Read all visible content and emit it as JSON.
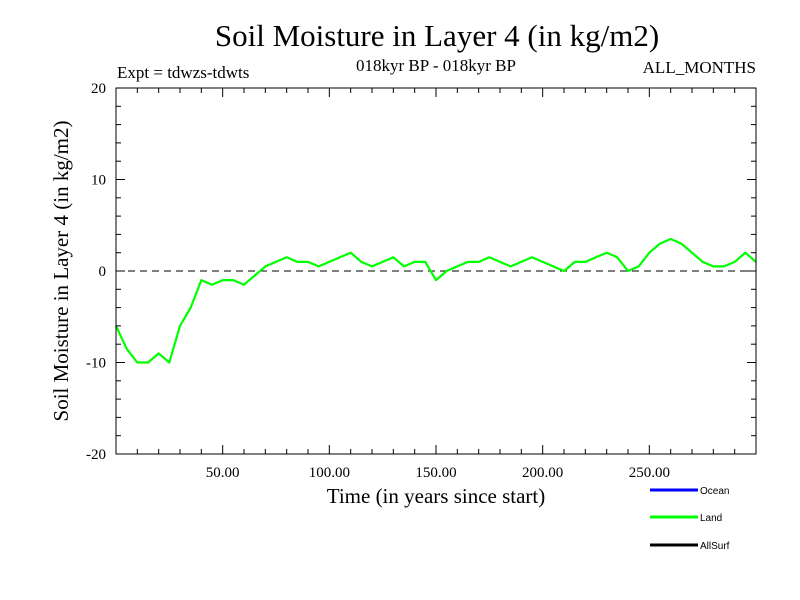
{
  "chart_data": {
    "type": "line",
    "title": "Soil Moisture in Layer 4 (in kg/m2)",
    "subtitle_left": "Expt = tdwzs-tdwts",
    "subtitle_center": "018kyr BP - 018kyr BP",
    "subtitle_right": "ALL_MONTHS",
    "xlabel": "Time (in years since start)",
    "ylabel": "Soil Moisture in Layer 4 (in kg/m2)",
    "xlim": [
      0,
      300
    ],
    "ylim": [
      -20,
      20
    ],
    "x_ticks": [
      50,
      100,
      150,
      200,
      250
    ],
    "x_tick_labels": [
      "50.00",
      "100.00",
      "150.00",
      "200.00",
      "250.00"
    ],
    "y_ticks": [
      -20,
      -10,
      0,
      10,
      20
    ],
    "y_tick_labels": [
      "-20",
      "-10",
      "0",
      "10",
      "20"
    ],
    "zero_line": 0,
    "legend": [
      {
        "name": "Ocean",
        "color": "#0000ff"
      },
      {
        "name": "Land",
        "color": "#00ff00"
      },
      {
        "name": "AllSurf",
        "color": "#000000"
      }
    ],
    "series": [
      {
        "name": "Land",
        "color": "#00ff00",
        "x": [
          0,
          5,
          10,
          15,
          20,
          25,
          30,
          35,
          40,
          45,
          50,
          55,
          60,
          65,
          70,
          75,
          80,
          85,
          90,
          95,
          100,
          105,
          110,
          115,
          120,
          125,
          130,
          135,
          140,
          145,
          150,
          155,
          160,
          165,
          170,
          175,
          180,
          185,
          190,
          195,
          200,
          205,
          210,
          215,
          220,
          225,
          230,
          235,
          240,
          245,
          250,
          255,
          260,
          265,
          270,
          275,
          280,
          285,
          290,
          295,
          300
        ],
        "values": [
          -6,
          -8.5,
          -10,
          -10,
          -9,
          -10,
          -6,
          -4,
          -1,
          -1.5,
          -1,
          -1,
          -1.5,
          -0.5,
          0.5,
          1,
          1.5,
          1,
          1,
          0.5,
          1,
          1.5,
          2,
          1,
          0.5,
          1,
          1.5,
          0.5,
          1,
          1,
          -1,
          0,
          0.5,
          1,
          1,
          1.5,
          1,
          0.5,
          1,
          1.5,
          1,
          0.5,
          0,
          1,
          1,
          1.5,
          2,
          1.5,
          0,
          0.5,
          2,
          3,
          3.5,
          3,
          2,
          1,
          0.5,
          0.5,
          1,
          2,
          1
        ]
      }
    ]
  }
}
